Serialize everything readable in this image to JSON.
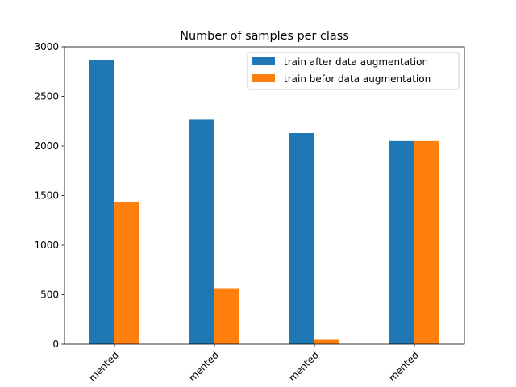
{
  "chart_data": {
    "type": "bar",
    "title": "Number of samples per class",
    "xlabel": "",
    "ylabel": "",
    "categories": [
      "mented",
      "mented",
      "mented",
      "mented"
    ],
    "series": [
      {
        "name": "train after data augmentation",
        "color": "#1f77b4",
        "values": [
          2870,
          2265,
          2130,
          2050
        ]
      },
      {
        "name": "train befor data augmentation",
        "color": "#ff7f0e",
        "values": [
          1435,
          565,
          45,
          2050
        ]
      }
    ],
    "ylim": [
      0,
      3000
    ],
    "yticks": [
      0,
      500,
      1000,
      1500,
      2000,
      2500,
      3000
    ],
    "legend": "top-right",
    "grid": false
  }
}
